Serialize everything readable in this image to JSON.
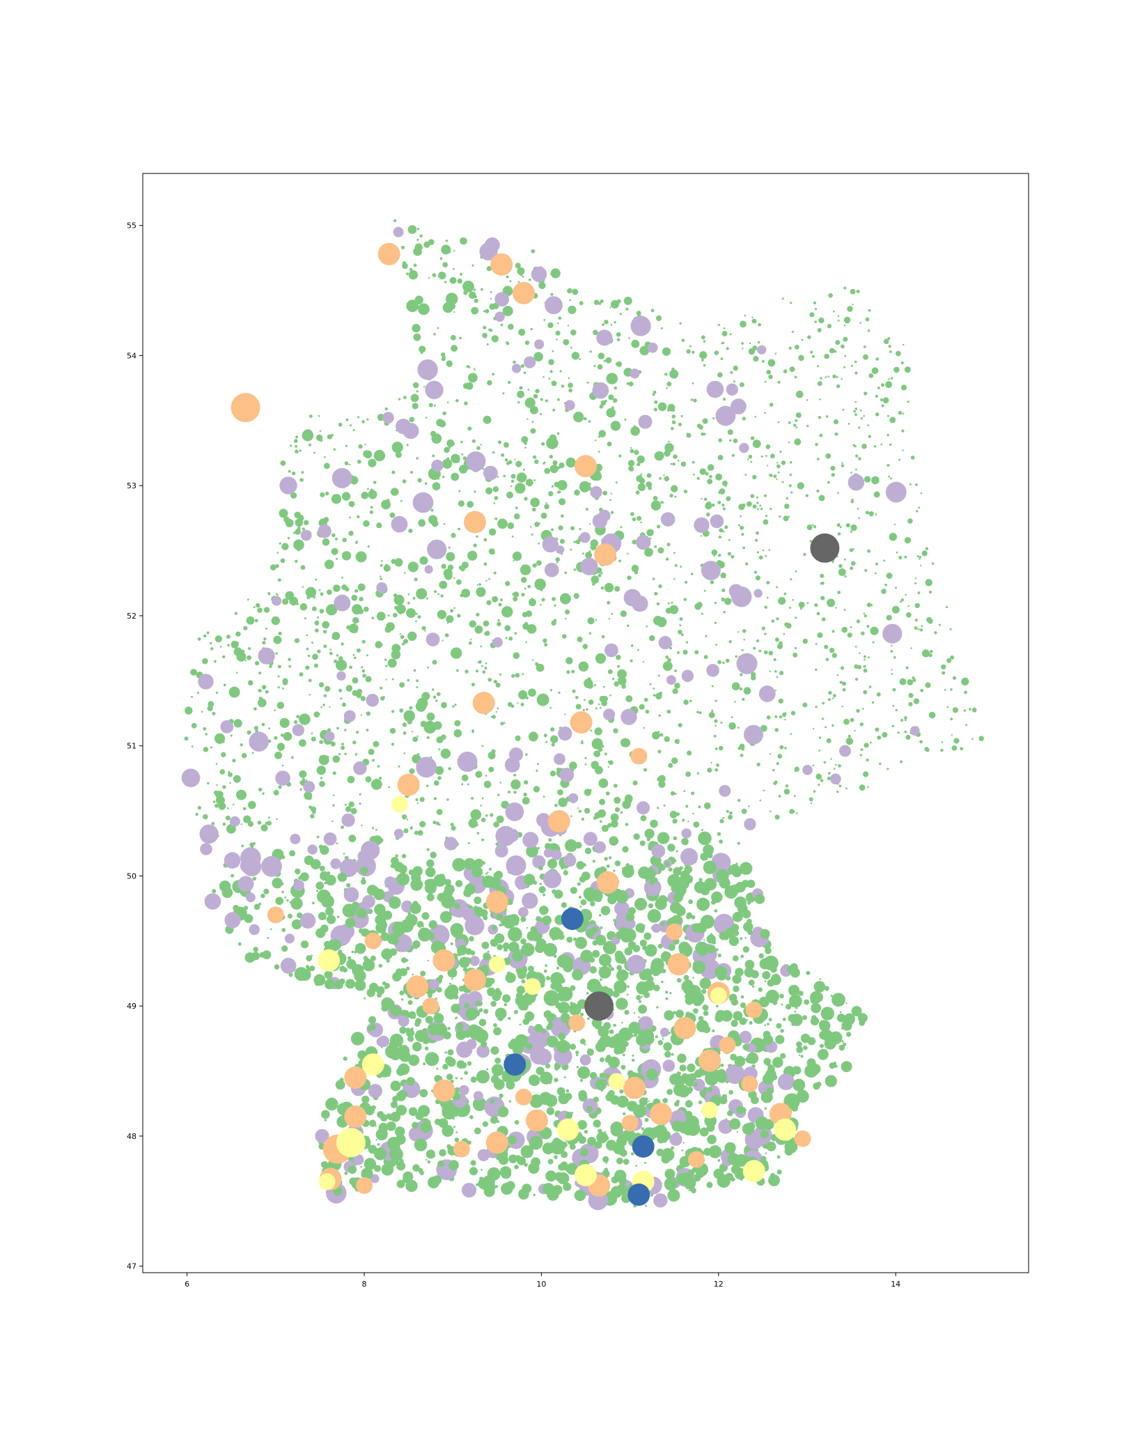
{
  "chart_data": {
    "type": "scatter",
    "title": "",
    "xlabel": "",
    "ylabel": "",
    "xlim": [
      5.5,
      15.5
    ],
    "ylim": [
      46.95,
      55.4
    ],
    "xticks": [
      6,
      8,
      10,
      12,
      14
    ],
    "yticks": [
      47,
      48,
      49,
      50,
      51,
      52,
      53,
      54,
      55
    ],
    "xtick_labels": [
      "6",
      "8",
      "10",
      "12",
      "14"
    ],
    "ytick_labels": [
      "47",
      "48",
      "49",
      "50",
      "51",
      "52",
      "53",
      "54",
      "55"
    ],
    "grid": false,
    "legend": "none",
    "colors": {
      "green": "#7fc97f",
      "purple": "#beaed4",
      "orange": "#fdc086",
      "yellow": "#ffff99",
      "blue": "#386cb0",
      "gray": "#666666"
    },
    "series": [
      {
        "color": "#fdc086",
        "points": [
          [
            6.66,
            53.6,
            5
          ],
          [
            8.28,
            54.78,
            4
          ],
          [
            9.55,
            54.7,
            4
          ],
          [
            9.8,
            54.48,
            4
          ],
          [
            10.5,
            53.15,
            4
          ],
          [
            9.25,
            52.72,
            4
          ],
          [
            10.72,
            52.47,
            4
          ],
          [
            9.35,
            51.33,
            4
          ],
          [
            10.45,
            51.18,
            4
          ],
          [
            11.1,
            50.92,
            3
          ],
          [
            8.5,
            50.7,
            4
          ],
          [
            10.2,
            50.42,
            4
          ],
          [
            7.0,
            49.7,
            3
          ],
          [
            8.1,
            49.5,
            3
          ],
          [
            9.5,
            49.8,
            4
          ],
          [
            10.75,
            49.95,
            4
          ],
          [
            11.5,
            49.57,
            3
          ],
          [
            11.55,
            49.32,
            4
          ],
          [
            8.9,
            49.35,
            4
          ],
          [
            9.25,
            49.2,
            4
          ],
          [
            8.6,
            49.15,
            4
          ],
          [
            10.4,
            48.87,
            3
          ],
          [
            11.62,
            48.83,
            4
          ],
          [
            12.0,
            49.1,
            4
          ],
          [
            12.4,
            48.97,
            3
          ],
          [
            11.9,
            48.58,
            4
          ],
          [
            12.35,
            48.4,
            3
          ],
          [
            7.9,
            48.45,
            4
          ],
          [
            8.9,
            48.35,
            4
          ],
          [
            9.8,
            48.3,
            3
          ],
          [
            11.05,
            48.37,
            4
          ],
          [
            11.35,
            48.17,
            4
          ],
          [
            9.95,
            48.12,
            4
          ],
          [
            12.7,
            48.17,
            4
          ],
          [
            12.95,
            47.98,
            3
          ],
          [
            7.7,
            47.9,
            5
          ],
          [
            7.9,
            48.15,
            4
          ],
          [
            7.62,
            47.67,
            4
          ],
          [
            8.0,
            47.62,
            3
          ],
          [
            9.5,
            47.95,
            4
          ],
          [
            10.65,
            47.62,
            4
          ],
          [
            11.75,
            47.82,
            3
          ],
          [
            12.1,
            48.7,
            3
          ],
          [
            8.75,
            49.0,
            3
          ],
          [
            9.1,
            47.9,
            3
          ],
          [
            11.0,
            48.1,
            3
          ]
        ]
      },
      {
        "color": "#ffff99",
        "points": [
          [
            7.6,
            49.35,
            4
          ],
          [
            8.1,
            48.55,
            4
          ],
          [
            7.85,
            47.95,
            5
          ],
          [
            9.5,
            49.32,
            3
          ],
          [
            10.3,
            48.05,
            4
          ],
          [
            10.5,
            47.7,
            4
          ],
          [
            11.15,
            47.65,
            4
          ],
          [
            12.4,
            47.73,
            4
          ],
          [
            12.75,
            48.05,
            4
          ],
          [
            12.0,
            49.08,
            3
          ],
          [
            7.58,
            47.65,
            3
          ],
          [
            8.4,
            50.55,
            3
          ],
          [
            10.85,
            48.42,
            3
          ],
          [
            9.9,
            49.15,
            3
          ],
          [
            11.9,
            48.2,
            3
          ]
        ]
      },
      {
        "color": "#386cb0",
        "points": [
          [
            10.35,
            49.67,
            4
          ],
          [
            9.7,
            48.55,
            4
          ],
          [
            11.15,
            47.92,
            4
          ],
          [
            11.1,
            47.55,
            4
          ]
        ]
      },
      {
        "color": "#666666",
        "points": [
          [
            13.2,
            52.52,
            5
          ],
          [
            10.65,
            49.0,
            5
          ]
        ]
      }
    ]
  }
}
